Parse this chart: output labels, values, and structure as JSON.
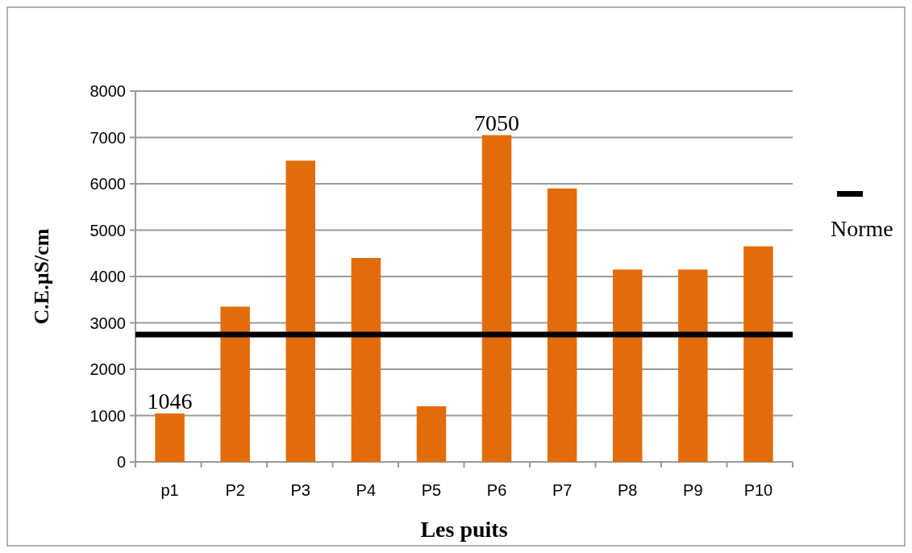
{
  "chart_data": {
    "type": "bar",
    "xlabel": "Les puits",
    "ylabel": "C.E.µS/cm",
    "categories": [
      "p1",
      "P2",
      "P3",
      "P4",
      "P5",
      "P6",
      "P7",
      "P8",
      "P9",
      "P10"
    ],
    "values": [
      1046,
      3350,
      6500,
      4400,
      1200,
      7050,
      5900,
      4150,
      4150,
      4650
    ],
    "value_labels": [
      "1046",
      null,
      null,
      null,
      null,
      "7050",
      null,
      null,
      null,
      null
    ],
    "color": "#e36c0a",
    "ylim": [
      0,
      8000
    ],
    "yticks": [
      0,
      1000,
      2000,
      3000,
      4000,
      5000,
      6000,
      7000,
      8000
    ],
    "grid": "y",
    "ref_lines": [
      {
        "axis": "y",
        "value": 2750,
        "label": "Norme",
        "color": "#000000"
      }
    ],
    "legend": "right"
  }
}
